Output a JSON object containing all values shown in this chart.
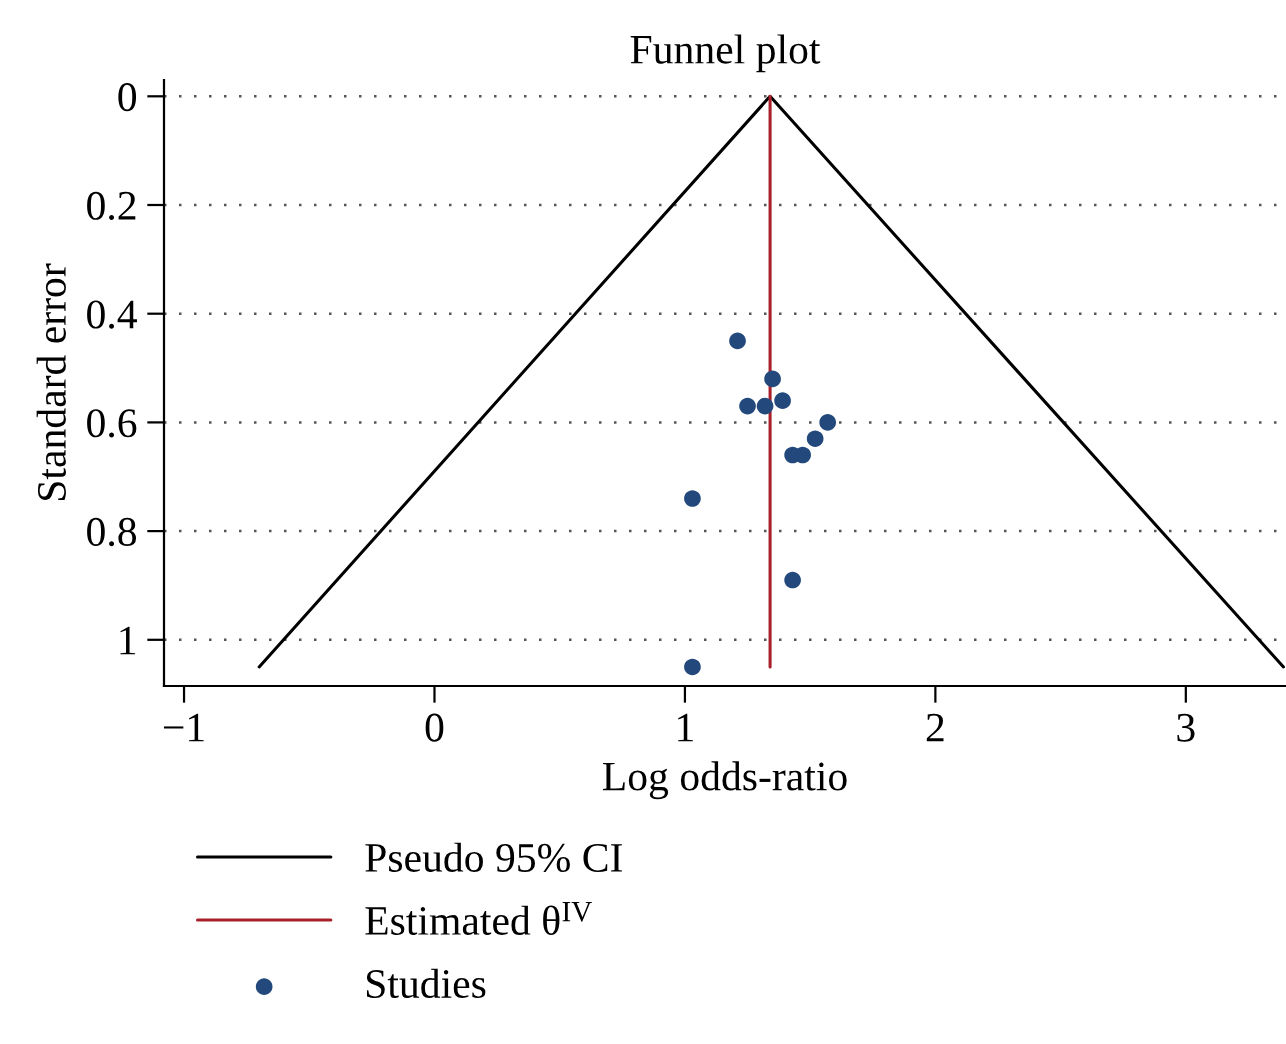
{
  "chart_data": {
    "type": "scatter",
    "title": "Funnel plot",
    "xlabel": "Log odds-ratio",
    "ylabel": "Standard error",
    "series": [
      {
        "name": "Pseudo 95% CI",
        "type": "line",
        "color": "#000000",
        "x": [
          -0.7,
          1.34,
          3.39
        ],
        "values": [
          1.05,
          0,
          1.05
        ]
      },
      {
        "name": "Estimated θ$^{IV}$",
        "type": "line",
        "color": "#a8202a",
        "x": [
          1.34,
          1.34
        ],
        "values": [
          0,
          1.05
        ]
      },
      {
        "name": "Studies",
        "marker": "circle",
        "color": "#23497c",
        "x": [
          1.21,
          1.35,
          1.25,
          1.32,
          1.39,
          1.57,
          1.52,
          1.43,
          1.47,
          1.03,
          1.43,
          1.03
        ],
        "values": [
          0.45,
          0.52,
          0.57,
          0.57,
          0.56,
          0.6,
          0.63,
          0.66,
          0.66,
          0.74,
          0.89,
          1.05
        ]
      }
    ],
    "xlim": [
      -1.08,
      3.4
    ],
    "xticks": [
      {
        "value": -1,
        "label": "−1"
      },
      0,
      1,
      2,
      3
    ],
    "ylim": [
      1.085,
      -0.03
    ],
    "yticks": [
      0,
      0.2,
      0.4,
      0.6,
      0.8,
      1
    ],
    "grid": "y",
    "legend": "bottom"
  }
}
